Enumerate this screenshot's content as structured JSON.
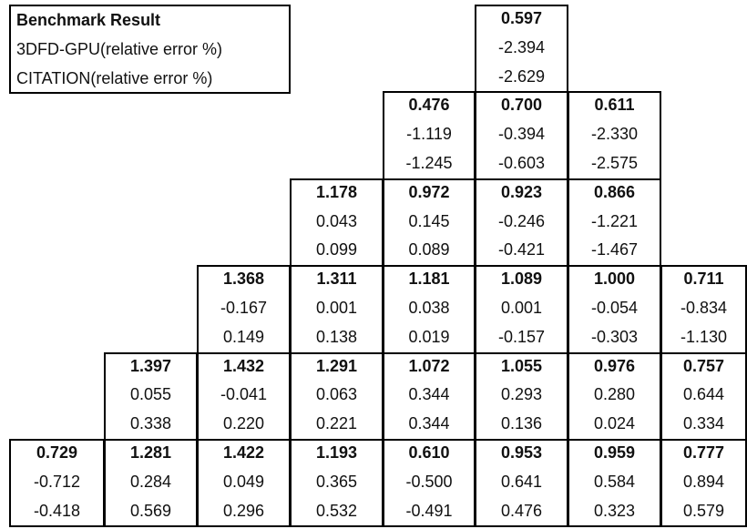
{
  "legend": {
    "title": "Benchmark Result",
    "rows": [
      "3DFD-GPU(relative error %)",
      "CITATION(relative error %)"
    ]
  },
  "table": {
    "rows": [
      [
        null,
        null,
        null,
        null,
        null,
        [
          "0.597",
          "-2.394",
          "-2.629"
        ],
        null,
        null
      ],
      [
        null,
        null,
        null,
        null,
        [
          "0.476",
          "-1.119",
          "-1.245"
        ],
        [
          "0.700",
          "-0.394",
          "-0.603"
        ],
        [
          "0.611",
          "-2.330",
          "-2.575"
        ],
        null
      ],
      [
        null,
        null,
        null,
        [
          "1.178",
          "0.043",
          "0.099"
        ],
        [
          "0.972",
          "0.145",
          "0.089"
        ],
        [
          "0.923",
          "-0.246",
          "-0.421"
        ],
        [
          "0.866",
          "-1.221",
          "-1.467"
        ],
        null
      ],
      [
        null,
        null,
        [
          "1.368",
          "-0.167",
          "0.149"
        ],
        [
          "1.311",
          "0.001",
          "0.138"
        ],
        [
          "1.181",
          "0.038",
          "0.019"
        ],
        [
          "1.089",
          "0.001",
          "-0.157"
        ],
        [
          "1.000",
          "-0.054",
          "-0.303"
        ],
        [
          "0.711",
          "-0.834",
          "-1.130"
        ]
      ],
      [
        null,
        [
          "1.397",
          "0.055",
          "0.338"
        ],
        [
          "1.432",
          "-0.041",
          "0.220"
        ],
        [
          "1.291",
          "0.063",
          "0.221"
        ],
        [
          "1.072",
          "0.344",
          "0.344"
        ],
        [
          "1.055",
          "0.293",
          "0.136"
        ],
        [
          "0.976",
          "0.280",
          "0.024"
        ],
        [
          "0.757",
          "0.644",
          "0.334"
        ]
      ],
      [
        [
          "0.729",
          "-0.712",
          "-0.418"
        ],
        [
          "1.281",
          "0.284",
          "0.569"
        ],
        [
          "1.422",
          "0.049",
          "0.296"
        ],
        [
          "1.193",
          "0.365",
          "0.532"
        ],
        [
          "0.610",
          "-0.500",
          "-0.491"
        ],
        [
          "0.953",
          "0.641",
          "0.476"
        ],
        [
          "0.959",
          "0.584",
          "0.323"
        ],
        [
          "0.777",
          "0.894",
          "0.579"
        ]
      ]
    ]
  }
}
